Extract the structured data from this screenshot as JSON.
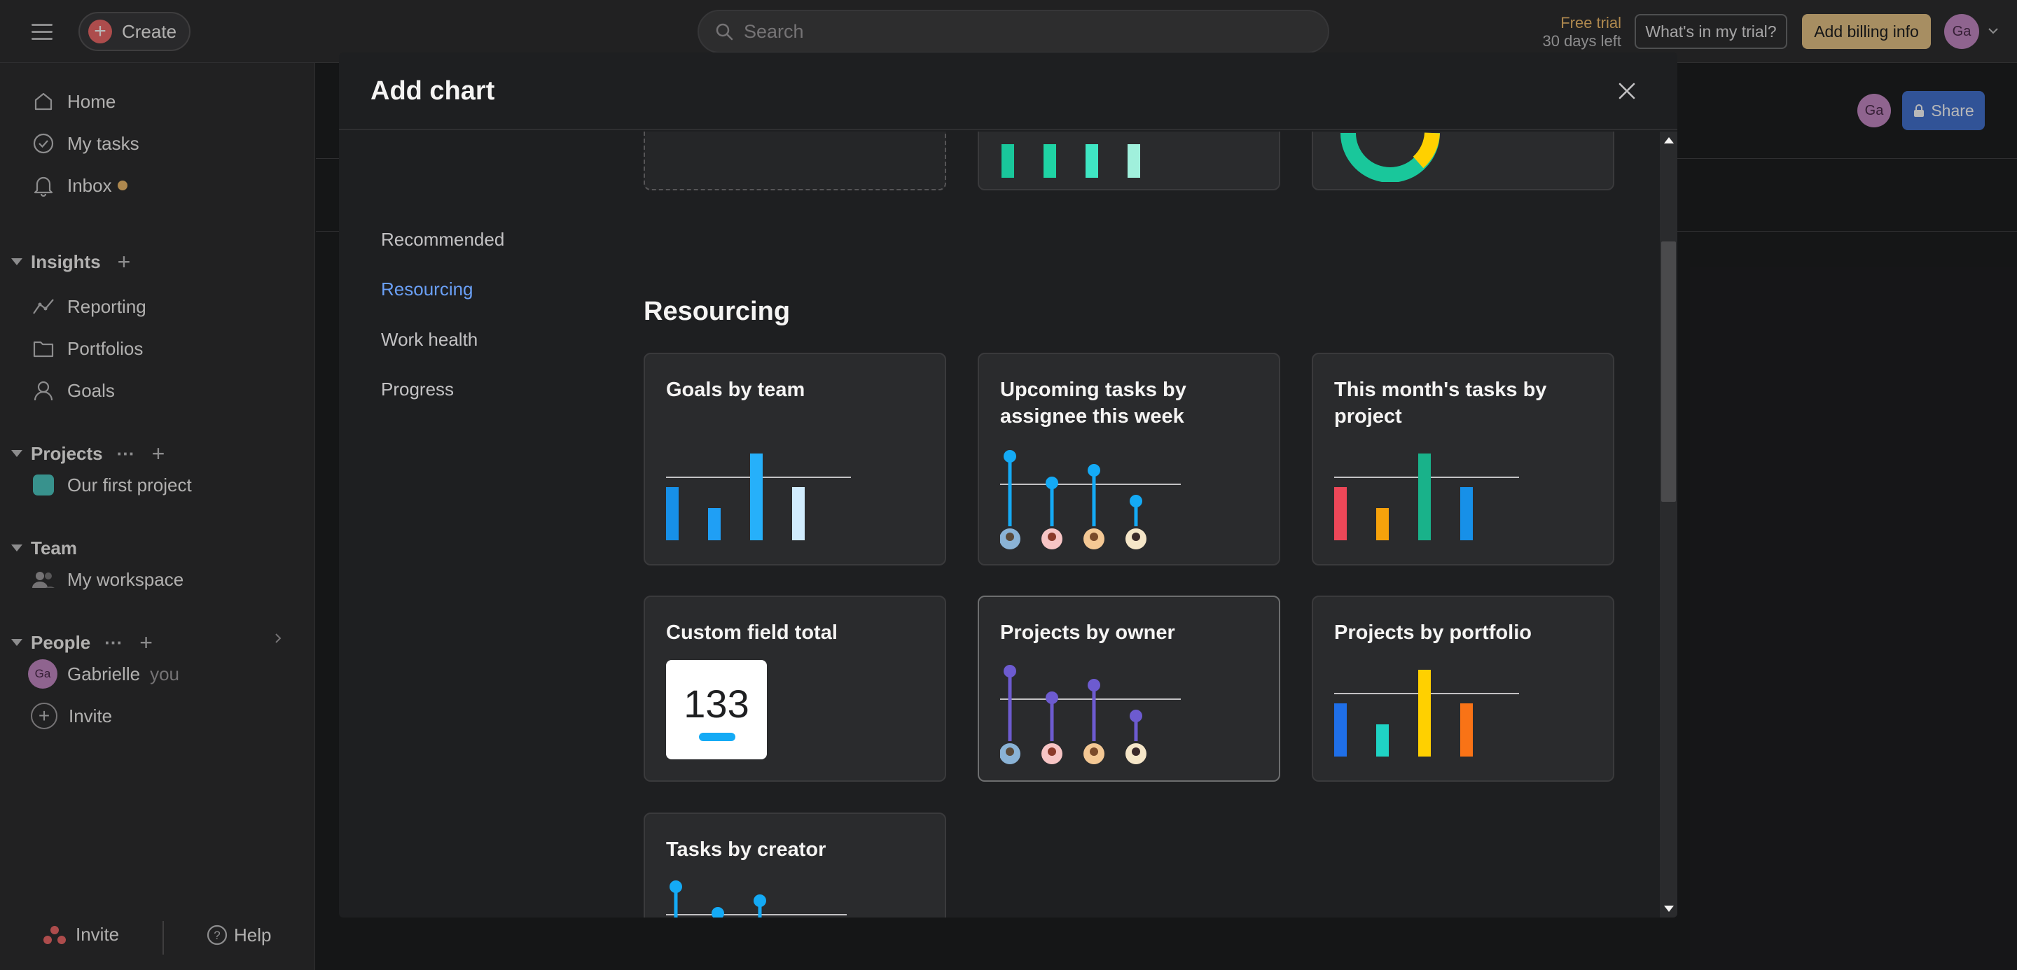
{
  "topbar": {
    "create_label": "Create",
    "search_placeholder": "Search",
    "trial_line1": "Free trial",
    "trial_line2": "30 days left",
    "trial_button": "What's in my trial?",
    "billing_button": "Add billing info",
    "avatar_initials": "Ga"
  },
  "sidebar": {
    "home": "Home",
    "my_tasks": "My tasks",
    "inbox": "Inbox",
    "insights": "Insights",
    "reporting": "Reporting",
    "portfolios": "Portfolios",
    "goals": "Goals",
    "projects": "Projects",
    "projects_ellipsis": "···",
    "our_first_project": "Our first project",
    "team": "Team",
    "my_workspace": "My workspace",
    "people": "People",
    "people_ellipsis": "···",
    "me_name": "Gabrielle",
    "me_suffix": "you",
    "me_initials": "Ga",
    "invite": "Invite",
    "bottom_invite": "Invite",
    "bottom_help": "Help"
  },
  "main": {
    "avatar_initials": "Ga",
    "share_label": "Share"
  },
  "modal": {
    "title": "Add chart",
    "nav": {
      "recommended": "Recommended",
      "resourcing": "Resourcing",
      "work_health": "Work health",
      "progress": "Progress"
    },
    "section_title": "Resourcing",
    "cards": {
      "goals_by_team": "Goals by team",
      "upcoming_tasks": "Upcoming tasks by assignee this week",
      "month_tasks": "This month's tasks by project",
      "custom_field_total": "Custom field total",
      "custom_field_value": "133",
      "projects_by_owner": "Projects by owner",
      "projects_by_portfolio": "Projects by portfolio",
      "tasks_by_creator": "Tasks by creator"
    }
  },
  "colors": {
    "accent_blue": "#14aaf5",
    "purple": "#6d5bd0",
    "green": "#19c79b",
    "red": "#ed4758",
    "orange": "#f6a20b",
    "yellow": "#ffd000",
    "teal": "#1fd3c4",
    "blue": "#1f6fe8"
  }
}
